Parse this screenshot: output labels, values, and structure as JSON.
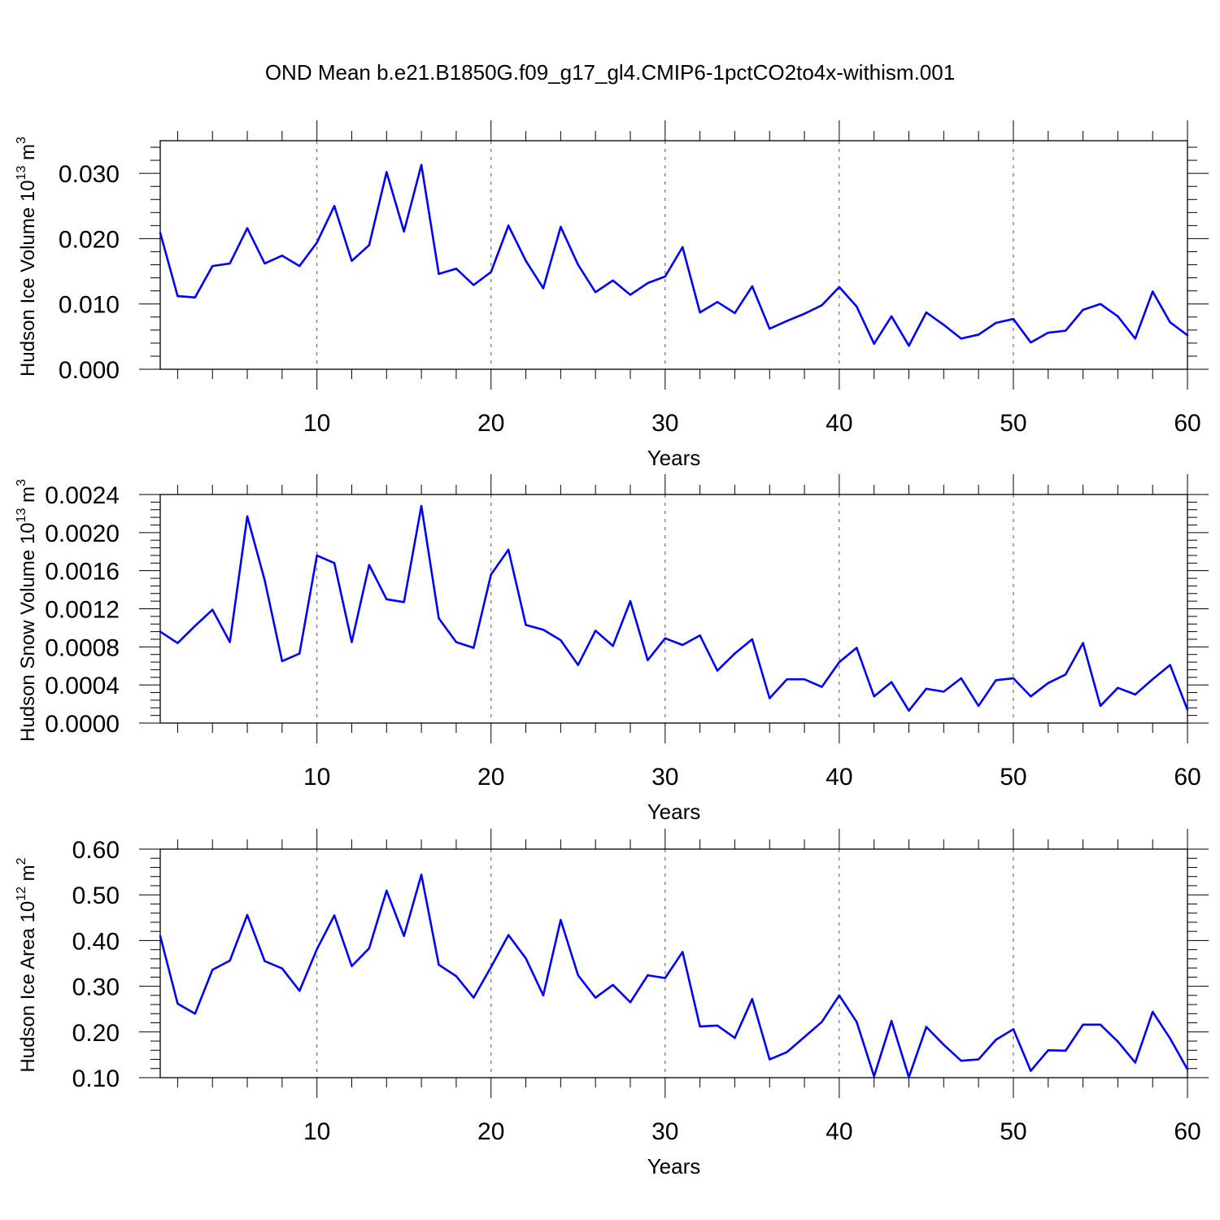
{
  "title": "OND Mean b.e21.B1850G.f09_g17_gl4.CMIP6-1pctCO2to4x-withism.001",
  "colors": {
    "series": "#0000ff",
    "axis": "#000000",
    "grid": "#555555"
  },
  "chart_data": [
    {
      "type": "line",
      "ylabel": {
        "main": "Hudson Ice Volume 10",
        "exp": "13",
        "unit": " m",
        "unit_exp": "3"
      },
      "xlabel": "Years",
      "xlim": [
        1,
        60
      ],
      "ylim": [
        0,
        0.035
      ],
      "xticks": [
        10,
        20,
        30,
        40,
        50,
        60
      ],
      "yticks": [
        0.0,
        0.01,
        0.02,
        0.03
      ],
      "ytick_labels": [
        "0.000",
        "0.010",
        "0.020",
        "0.030"
      ],
      "x": [
        1,
        2,
        3,
        4,
        5,
        6,
        7,
        8,
        9,
        10,
        11,
        12,
        13,
        14,
        15,
        16,
        17,
        18,
        19,
        20,
        21,
        22,
        23,
        24,
        25,
        26,
        27,
        28,
        29,
        30,
        31,
        32,
        33,
        34,
        35,
        36,
        37,
        38,
        39,
        40,
        41,
        42,
        43,
        44,
        45,
        46,
        47,
        48,
        49,
        50,
        51,
        52,
        53,
        54,
        55,
        56,
        57,
        58,
        59,
        60
      ],
      "series": [
        {
          "values": [
            0.0209,
            0.0112,
            0.011,
            0.0158,
            0.0162,
            0.0216,
            0.0162,
            0.0174,
            0.0158,
            0.0194,
            0.025,
            0.0166,
            0.019,
            0.0302,
            0.0211,
            0.0313,
            0.0146,
            0.0154,
            0.0129,
            0.0149,
            0.022,
            0.0166,
            0.0124,
            0.0218,
            0.016,
            0.0118,
            0.0136,
            0.0114,
            0.0132,
            0.0142,
            0.0187,
            0.0087,
            0.0103,
            0.0086,
            0.0127,
            0.0062,
            0.0074,
            0.0085,
            0.0098,
            0.0126,
            0.0096,
            0.0039,
            0.0081,
            0.0036,
            0.0087,
            0.0068,
            0.0047,
            0.0053,
            0.0071,
            0.0077,
            0.0041,
            0.0056,
            0.0059,
            0.0091,
            0.01,
            0.0081,
            0.0047,
            0.0119,
            0.0072,
            0.0052
          ]
        }
      ]
    },
    {
      "type": "line",
      "ylabel": {
        "main": "Hudson Snow Volume 10",
        "exp": "13",
        "unit": " m",
        "unit_exp": "3"
      },
      "xlabel": "Years",
      "xlim": [
        1,
        60
      ],
      "ylim": [
        0,
        0.0024
      ],
      "xticks": [
        10,
        20,
        30,
        40,
        50,
        60
      ],
      "yticks": [
        0.0,
        0.0004,
        0.0008,
        0.0012,
        0.0016,
        0.002,
        0.0024
      ],
      "ytick_labels": [
        "0.0000",
        "0.0004",
        "0.0008",
        "0.0012",
        "0.0016",
        "0.0020",
        "0.0024"
      ],
      "x": [
        1,
        2,
        3,
        4,
        5,
        6,
        7,
        8,
        9,
        10,
        11,
        12,
        13,
        14,
        15,
        16,
        17,
        18,
        19,
        20,
        21,
        22,
        23,
        24,
        25,
        26,
        27,
        28,
        29,
        30,
        31,
        32,
        33,
        34,
        35,
        36,
        37,
        38,
        39,
        40,
        41,
        42,
        43,
        44,
        45,
        46,
        47,
        48,
        49,
        50,
        51,
        52,
        53,
        54,
        55,
        56,
        57,
        58,
        59,
        60
      ],
      "series": [
        {
          "values": [
            0.00096,
            0.00084,
            0.00102,
            0.00119,
            0.00085,
            0.00217,
            0.0015,
            0.00065,
            0.00073,
            0.00176,
            0.00168,
            0.00085,
            0.00166,
            0.0013,
            0.00127,
            0.00228,
            0.0011,
            0.00085,
            0.00079,
            0.00156,
            0.00182,
            0.00103,
            0.00098,
            0.00087,
            0.00061,
            0.00097,
            0.00081,
            0.00128,
            0.00066,
            0.00089,
            0.00082,
            0.00092,
            0.00055,
            0.00073,
            0.00088,
            0.00026,
            0.00046,
            0.00046,
            0.00038,
            0.00064,
            0.00079,
            0.00028,
            0.00043,
            0.00013,
            0.00036,
            0.00033,
            0.00047,
            0.00018,
            0.00045,
            0.00047,
            0.00028,
            0.00042,
            0.00051,
            0.00084,
            0.00018,
            0.00037,
            0.0003,
            0.00046,
            0.00061,
            0.00014
          ]
        }
      ]
    },
    {
      "type": "line",
      "ylabel": {
        "main": "Hudson Ice Area 10",
        "exp": "12",
        "unit": " m",
        "unit_exp": "2"
      },
      "xlabel": "Years",
      "xlim": [
        1,
        60
      ],
      "ylim": [
        0.1,
        0.6
      ],
      "xticks": [
        10,
        20,
        30,
        40,
        50,
        60
      ],
      "yticks": [
        0.1,
        0.2,
        0.3,
        0.4,
        0.5,
        0.6
      ],
      "ytick_labels": [
        "0.10",
        "0.20",
        "0.30",
        "0.40",
        "0.50",
        "0.60"
      ],
      "x": [
        1,
        2,
        3,
        4,
        5,
        6,
        7,
        8,
        9,
        10,
        11,
        12,
        13,
        14,
        15,
        16,
        17,
        18,
        19,
        20,
        21,
        22,
        23,
        24,
        25,
        26,
        27,
        28,
        29,
        30,
        31,
        32,
        33,
        34,
        35,
        36,
        37,
        38,
        39,
        40,
        41,
        42,
        43,
        44,
        45,
        46,
        47,
        48,
        49,
        50,
        51,
        52,
        53,
        54,
        55,
        56,
        57,
        58,
        59,
        60
      ],
      "series": [
        {
          "values": [
            0.41,
            0.262,
            0.24,
            0.336,
            0.356,
            0.456,
            0.355,
            0.339,
            0.29,
            0.381,
            0.455,
            0.344,
            0.383,
            0.509,
            0.41,
            0.544,
            0.347,
            0.322,
            0.275,
            0.342,
            0.412,
            0.361,
            0.28,
            0.445,
            0.324,
            0.275,
            0.303,
            0.265,
            0.324,
            0.318,
            0.375,
            0.212,
            0.214,
            0.187,
            0.272,
            0.14,
            0.156,
            0.189,
            0.222,
            0.28,
            0.222,
            0.103,
            0.224,
            0.101,
            0.211,
            0.172,
            0.137,
            0.14,
            0.183,
            0.206,
            0.115,
            0.16,
            0.159,
            0.216,
            0.216,
            0.179,
            0.133,
            0.244,
            0.186,
            0.118
          ]
        }
      ]
    }
  ]
}
